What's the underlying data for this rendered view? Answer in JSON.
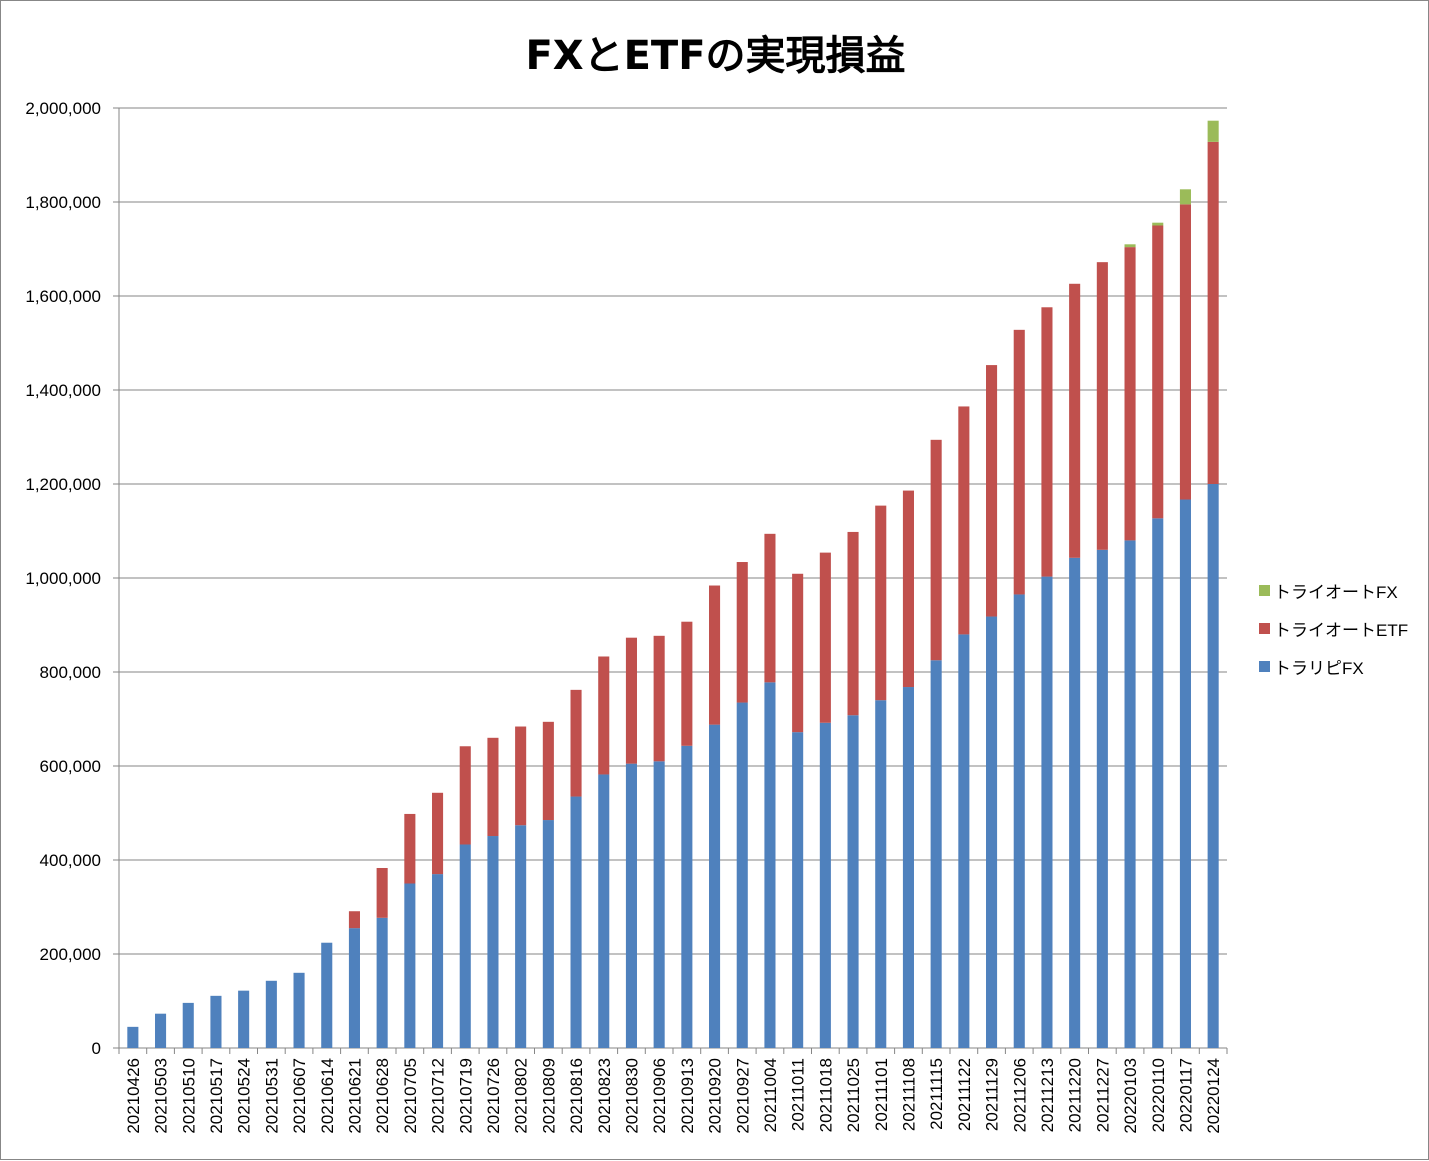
{
  "chart_data": {
    "type": "bar",
    "stacked": true,
    "title": "FXとETFの実現損益",
    "xlabel": "",
    "ylabel": "",
    "ylim": [
      0,
      2000000
    ],
    "y_tick_step": 200000,
    "grid": true,
    "legend_position": "right",
    "categories": [
      "20210426",
      "20210503",
      "20210510",
      "20210517",
      "20210524",
      "20210531",
      "20210607",
      "20210614",
      "20210621",
      "20210628",
      "20210705",
      "20210712",
      "20210719",
      "20210726",
      "20210802",
      "20210809",
      "20210816",
      "20210823",
      "20210830",
      "20210906",
      "20210913",
      "20210920",
      "20210927",
      "20211004",
      "20211011",
      "20211018",
      "20211025",
      "20211101",
      "20211108",
      "20211115",
      "20211122",
      "20211129",
      "20211206",
      "20211213",
      "20211220",
      "20211227",
      "20220103",
      "20220110",
      "20220117",
      "20220124"
    ],
    "series": [
      {
        "name": "トラリピFX",
        "color": "#4f81bd",
        "values": [
          45000,
          73000,
          96000,
          111000,
          122000,
          143000,
          160000,
          224000,
          255000,
          277000,
          350000,
          370000,
          433000,
          451000,
          474000,
          485000,
          535000,
          582000,
          605000,
          610000,
          643000,
          688000,
          735000,
          778000,
          672000,
          692000,
          708000,
          740000,
          768000,
          825000,
          880000,
          918000,
          965000,
          1003000,
          1043000,
          1060000,
          1080000,
          1127000,
          1167000,
          1200000
        ]
      },
      {
        "name": "トライオートETF",
        "color": "#c0504d",
        "values": [
          0,
          0,
          0,
          0,
          0,
          0,
          0,
          0,
          36000,
          106000,
          148000,
          173000,
          209000,
          209000,
          210000,
          209000,
          227000,
          251000,
          268000,
          267000,
          264000,
          296000,
          299000,
          316000,
          337000,
          362000,
          390000,
          414000,
          418000,
          469000,
          485000,
          535000,
          563000,
          573000,
          583000,
          612000,
          624000,
          623000,
          628000,
          728000
        ]
      },
      {
        "name": "トライオートFX",
        "color": "#9bbb59",
        "values": [
          0,
          0,
          0,
          0,
          0,
          0,
          0,
          0,
          0,
          0,
          0,
          0,
          0,
          0,
          0,
          0,
          0,
          0,
          0,
          0,
          0,
          0,
          0,
          0,
          0,
          0,
          0,
          0,
          0,
          0,
          0,
          0,
          0,
          0,
          0,
          0,
          6000,
          6000,
          32000,
          45000
        ]
      }
    ]
  },
  "legend_order": [
    2,
    1,
    0
  ]
}
